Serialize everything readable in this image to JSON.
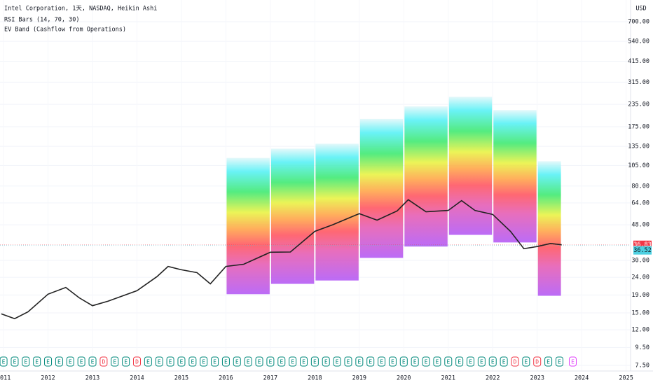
{
  "chart_data": {
    "type": "line",
    "legend_lines": [
      "Intel Corporation, 1天, NASDAQ, Heikin Ashi",
      "RSI Bars (14, 70, 30)",
      "EV Band (Cashflow from Operations)"
    ],
    "currency": "USD",
    "log_scale": true,
    "grid": true,
    "color": "#222222",
    "x": [
      2010.95,
      2011.25,
      2011.55,
      2012.0,
      2012.4,
      2012.7,
      2013.0,
      2013.35,
      2014.0,
      2014.45,
      2014.7,
      2015.0,
      2015.35,
      2015.65,
      2016.0,
      2016.4,
      2017.0,
      2017.45,
      2018.0,
      2018.4,
      2019.0,
      2019.4,
      2019.85,
      2020.1,
      2020.5,
      2021.0,
      2021.3,
      2021.6,
      2022.0,
      2022.4,
      2022.7,
      2023.0,
      2023.3,
      2023.55
    ],
    "values": [
      14.8,
      13.9,
      15.2,
      19.2,
      21.0,
      18.3,
      16.5,
      17.5,
      20.1,
      24.2,
      27.7,
      26.5,
      25.5,
      22.0,
      27.7,
      28.5,
      33.4,
      33.5,
      44,
      48,
      55.6,
      51,
      57.6,
      66.8,
      57,
      58,
      66,
      58,
      55,
      44,
      35,
      36,
      37.5,
      36.83
    ],
    "band": {
      "edges": [
        2016,
        2017,
        2018,
        2019,
        2020,
        2021,
        2022,
        2023,
        2023.55
      ],
      "top": [
        116,
        131,
        140,
        194,
        229,
        260,
        218,
        111
      ],
      "bottom": [
        19.2,
        22,
        23,
        31,
        36,
        42,
        38,
        18.8
      ]
    },
    "price_tags": [
      {
        "value": 36.83,
        "color": "#f23645"
      },
      {
        "value": 36.52,
        "color": "#4dd0e1"
      }
    ],
    "events": [
      {
        "label": "E",
        "color": "#00897b",
        "x": [
          2011.0,
          2011.25,
          2011.5,
          2011.75,
          2012.0,
          2012.25,
          2012.5,
          2012.75,
          2013.0,
          2013.5,
          2013.75,
          2014.25,
          2014.5,
          2014.75,
          2015.0,
          2015.25,
          2015.5,
          2015.75,
          2016.0,
          2016.25,
          2016.5,
          2016.75,
          2017.0,
          2017.25,
          2017.5,
          2017.75,
          2018.0,
          2018.25,
          2018.5,
          2018.75,
          2019.0,
          2019.25,
          2019.5,
          2019.75,
          2020.0,
          2020.25,
          2020.5,
          2020.75,
          2021.0,
          2021.25,
          2021.5,
          2021.75,
          2022.0,
          2022.25,
          2022.75,
          2023.25,
          2023.5
        ]
      },
      {
        "label": "D",
        "color": "#f23645",
        "x": [
          2013.25,
          2014.0,
          2022.5,
          2023.0
        ]
      },
      {
        "label": "E",
        "color": "#e040fb",
        "x": [
          2023.8
        ]
      }
    ],
    "xlim": [
      2010.92,
      2025.1
    ],
    "xticks": [
      2011,
      2012,
      2013,
      2014,
      2015,
      2016,
      2017,
      2018,
      2019,
      2020,
      2021,
      2022,
      2023,
      2024,
      2025
    ],
    "ylim": [
      7.5,
      700
    ],
    "yticks": [
      {
        "value": 700,
        "label": "700.00"
      },
      {
        "value": 540,
        "label": "540.00"
      },
      {
        "value": 415,
        "label": "415.00"
      },
      {
        "value": 315,
        "label": "315.00"
      },
      {
        "value": 235,
        "label": "235.00"
      },
      {
        "value": 175,
        "label": "175.00"
      },
      {
        "value": 135,
        "label": "135.00"
      },
      {
        "value": 105,
        "label": "105.00"
      },
      {
        "value": 80,
        "label": "80.00"
      },
      {
        "value": 64,
        "label": "64.00"
      },
      {
        "value": 48,
        "label": "48.00"
      },
      {
        "value": 30,
        "label": "30.00"
      },
      {
        "value": 24,
        "label": "24.00"
      },
      {
        "value": 19,
        "label": "19.00"
      },
      {
        "value": 15,
        "label": "15.00"
      },
      {
        "value": 12,
        "label": "12.00"
      },
      {
        "value": 9.5,
        "label": "9.50"
      },
      {
        "value": 7.5,
        "label": "7.50"
      }
    ]
  }
}
